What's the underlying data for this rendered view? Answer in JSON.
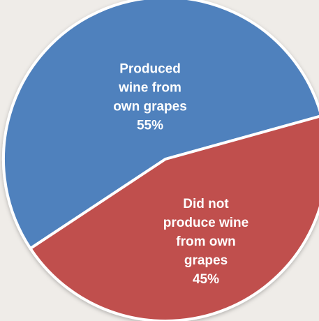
{
  "chart_data": {
    "type": "pie",
    "title": "",
    "slices": [
      {
        "label_lines": [
          "Produced",
          "wine from",
          "own grapes",
          "55%"
        ],
        "value": 55,
        "color": "#4f81bd"
      },
      {
        "label_lines": [
          "Did not",
          "produce wine",
          "from own",
          "grapes",
          "45%"
        ],
        "value": 45,
        "color": "#c0504d"
      }
    ],
    "legend": "none"
  }
}
